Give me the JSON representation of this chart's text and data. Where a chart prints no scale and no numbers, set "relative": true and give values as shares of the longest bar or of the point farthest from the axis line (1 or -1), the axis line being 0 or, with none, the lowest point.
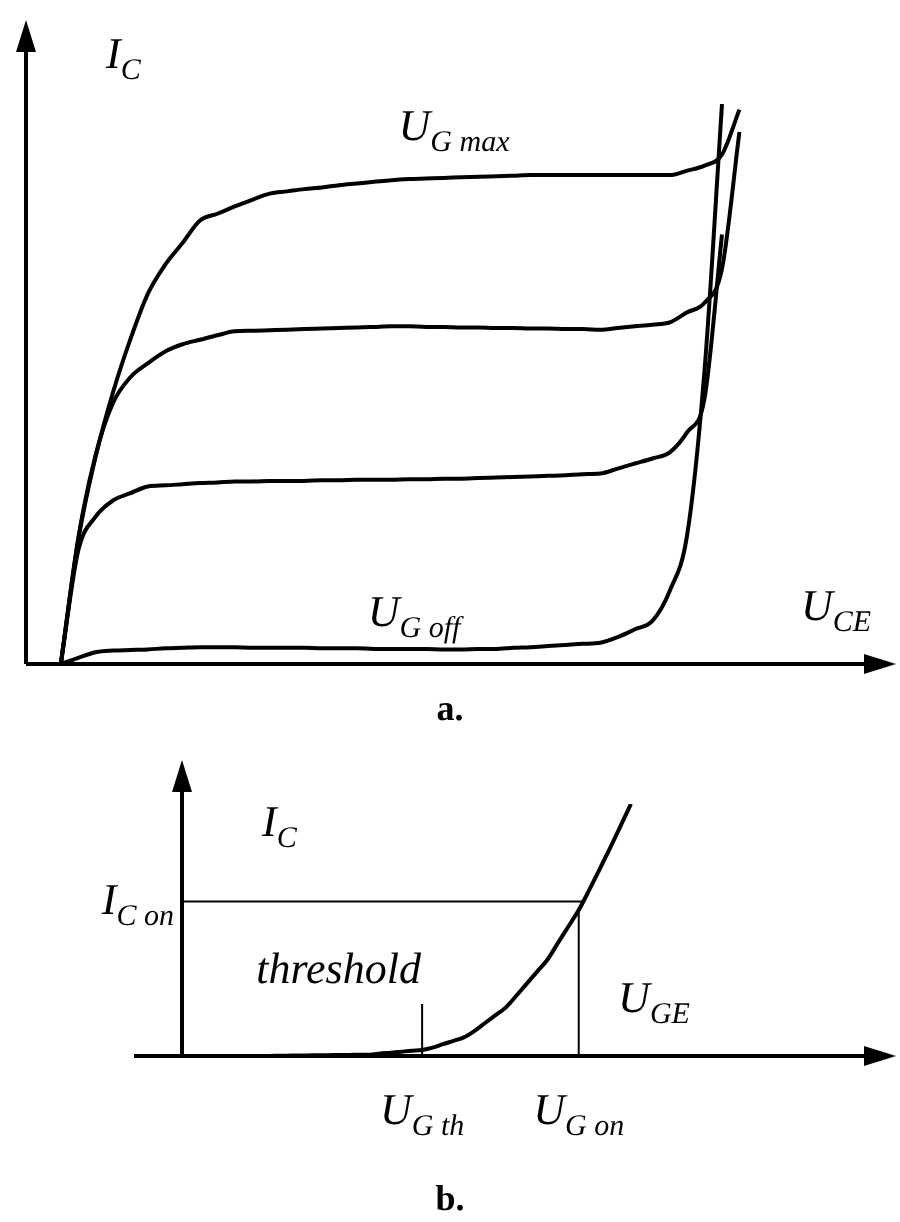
{
  "chart_data": [
    {
      "type": "line",
      "relative": true,
      "title": "a.",
      "xlabel": "U$_{CE}$",
      "ylabel": "I$_{C}$",
      "marker": "none",
      "categories": [
        null,
        null,
        null,
        null,
        null,
        null,
        null,
        null,
        null,
        null,
        null,
        null,
        null,
        null,
        null,
        null,
        null,
        null,
        null,
        null,
        null,
        null,
        null,
        null,
        null,
        null,
        null,
        null,
        null,
        null,
        null,
        null,
        null,
        null,
        null,
        null,
        null,
        null,
        null,
        null,
        null,
        null,
        null,
        null,
        null,
        null,
        null,
        null,
        null,
        null,
        null
      ],
      "series": [
        {
          "color": "#000000",
          "values": [
            null,
            null,
            0,
            0.221,
            0.37,
            0.485,
            0.58,
            0.661,
            0.713,
            0.752,
            0.792,
            0.804,
            0.817,
            0.829,
            0.84,
            0.844,
            0.848,
            0.851,
            0.855,
            0.858,
            0.861,
            0.864,
            0.866,
            0.867,
            0.868,
            0.869,
            0.87,
            0.871,
            0.872,
            0.873,
            0.873,
            0.873,
            0.873,
            0.873,
            0.873,
            0.873,
            0.873,
            0.873,
            0.881,
            0.89,
            0.91,
            0.99,
            null,
            null,
            null,
            null,
            null,
            null,
            null,
            null,
            null
          ]
        },
        {
          "color": "#000000",
          "values": [
            null,
            null,
            0,
            0.224,
            0.373,
            0.466,
            0.512,
            0.537,
            0.558,
            0.571,
            0.579,
            0.587,
            0.594,
            0.595,
            0.596,
            0.597,
            0.598,
            0.599,
            0.6,
            0.601,
            0.602,
            0.603,
            0.603,
            0.602,
            0.602,
            0.601,
            0.601,
            0.6,
            0.6,
            0.599,
            0.599,
            0.598,
            0.598,
            0.597,
            0.6,
            0.603,
            0.606,
            0.61,
            0.628,
            0.645,
            0.706,
            0.95,
            null,
            null,
            null,
            null,
            null,
            null,
            null,
            null,
            null
          ]
        },
        {
          "color": "#000000",
          "values": [
            null,
            null,
            0,
            0.202,
            0.263,
            0.292,
            0.305,
            0.317,
            0.319,
            0.321,
            0.323,
            0.324,
            0.326,
            0.326,
            0.327,
            0.327,
            0.327,
            0.328,
            0.328,
            0.329,
            0.329,
            0.329,
            0.33,
            0.33,
            0.331,
            0.331,
            0.332,
            0.333,
            0.334,
            0.335,
            0.336,
            0.337,
            0.339,
            0.34,
            0.349,
            0.358,
            0.367,
            0.378,
            0.414,
            0.475,
            0.767,
            null,
            null,
            null,
            null,
            null,
            null,
            null,
            null,
            null,
            null
          ]
        },
        {
          "color": "#000000",
          "values": [
            null,
            null,
            0,
            0.011,
            0.021,
            0.024,
            0.025,
            0.026,
            0.028,
            0.029,
            0.03,
            0.03,
            0.03,
            0.029,
            0.029,
            0.029,
            0.029,
            0.028,
            0.028,
            0.028,
            0.027,
            0.027,
            0.027,
            0.027,
            0.026,
            0.026,
            0.027,
            0.027,
            0.029,
            0.03,
            0.032,
            0.034,
            0.036,
            0.038,
            0.048,
            0.062,
            0.077,
            0.131,
            0.231,
            0.526,
            1.0,
            null,
            null,
            null,
            null,
            null,
            null,
            null,
            null,
            null,
            null
          ]
        }
      ],
      "annotations": [
        "U$_{G max}$",
        "U$_{G off}$"
      ]
    },
    {
      "type": "line",
      "relative": true,
      "title": "b.",
      "xlabel": "U$_{GE}$",
      "ylabel": "I$_{C}$",
      "marker": "none",
      "categories": [
        null,
        null,
        null,
        null,
        null,
        null,
        null,
        null,
        null,
        null,
        null,
        null,
        null,
        null,
        null,
        null,
        null,
        null,
        null,
        null,
        null,
        null,
        null,
        "U$_{G th}$",
        null,
        null,
        null,
        null,
        null,
        null,
        null,
        null,
        null,
        null,
        null,
        null,
        null,
        null,
        "U$_{G on}$",
        null,
        null,
        null,
        null,
        null,
        null,
        null,
        null,
        null,
        null,
        null,
        null
      ],
      "series": [
        {
          "color": "#000000",
          "values": [
            null,
            null,
            null,
            null,
            null,
            null,
            null,
            null,
            0,
            0.001,
            0.001,
            0.002,
            0.002,
            0.003,
            0.003,
            0.004,
            0.004,
            0.005,
            0.005,
            0.01,
            0.013,
            0.017,
            0.021,
            0.024,
            0.033,
            0.047,
            0.06,
            0.074,
            0.099,
            0.13,
            0.161,
            0.192,
            0.238,
            0.286,
            0.334,
            0.382,
            0.448,
            0.513,
            0.579,
            0.658,
            0.741,
            0.825,
            0.912,
            1.0,
            null,
            null,
            null,
            null,
            null,
            null,
            null
          ]
        }
      ],
      "ref_lines": [
        {
          "axis": "y",
          "value": 0.613,
          "label": "I$_{C on}$"
        },
        {
          "axis": "x",
          "value": "U$_{G on}$"
        },
        {
          "axis": "x",
          "value": "U$_{G th}$"
        }
      ],
      "annotations": [
        "threshold"
      ]
    }
  ]
}
